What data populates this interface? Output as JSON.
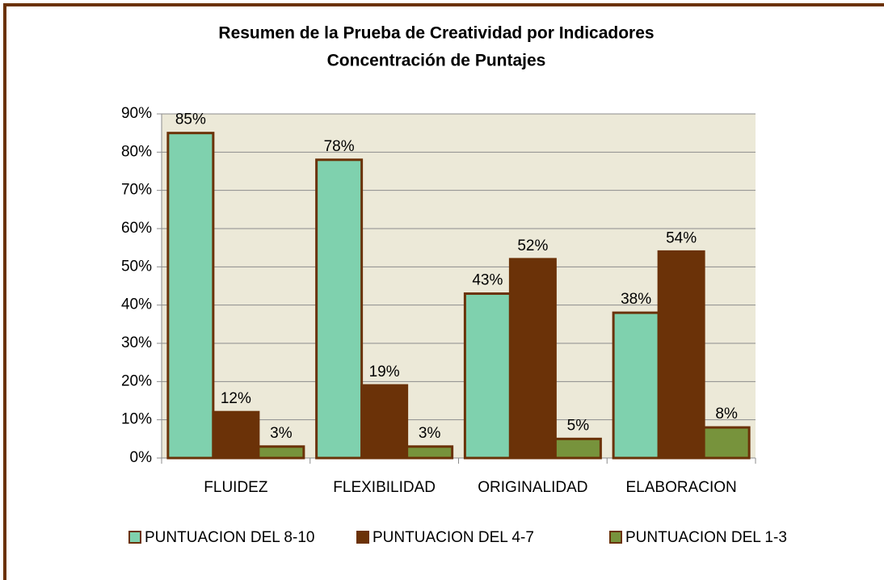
{
  "chart_data": {
    "type": "bar",
    "title": "Resumen de la Prueba de Creatividad por Indicadores",
    "subtitle": "Concentración de Puntajes",
    "categories": [
      "FLUIDEZ",
      "FLEXIBILIDAD",
      "ORIGINALIDAD",
      "ELABORACION"
    ],
    "series": [
      {
        "name": "PUNTUACION DEL 8-10",
        "color": "#7fd1ae",
        "values": [
          85,
          78,
          43,
          38
        ],
        "value_labels": [
          "85%",
          "78%",
          "43%",
          "38%"
        ]
      },
      {
        "name": "PUNTUACION DEL 4-7",
        "color": "#6b3208",
        "values": [
          12,
          19,
          52,
          54
        ],
        "value_labels": [
          "12%",
          "19%",
          "52%",
          "54%"
        ]
      },
      {
        "name": "PUNTUACION DEL 1-3",
        "color": "#77933c",
        "values": [
          3,
          3,
          5,
          8
        ],
        "value_labels": [
          "3%",
          "3%",
          "5%",
          "8%"
        ]
      }
    ],
    "ylim": [
      0,
      90
    ],
    "yticks": [
      {
        "value": 0,
        "label": "0%"
      },
      {
        "value": 10,
        "label": "10%"
      },
      {
        "value": 20,
        "label": "20%"
      },
      {
        "value": 30,
        "label": "30%"
      },
      {
        "value": 40,
        "label": "40%"
      },
      {
        "value": 50,
        "label": "50%"
      },
      {
        "value": 60,
        "label": "60%"
      },
      {
        "value": 70,
        "label": "70%"
      },
      {
        "value": 80,
        "label": "80%"
      },
      {
        "value": 90,
        "label": "90%"
      }
    ],
    "grid": true,
    "legend": "bottom"
  }
}
